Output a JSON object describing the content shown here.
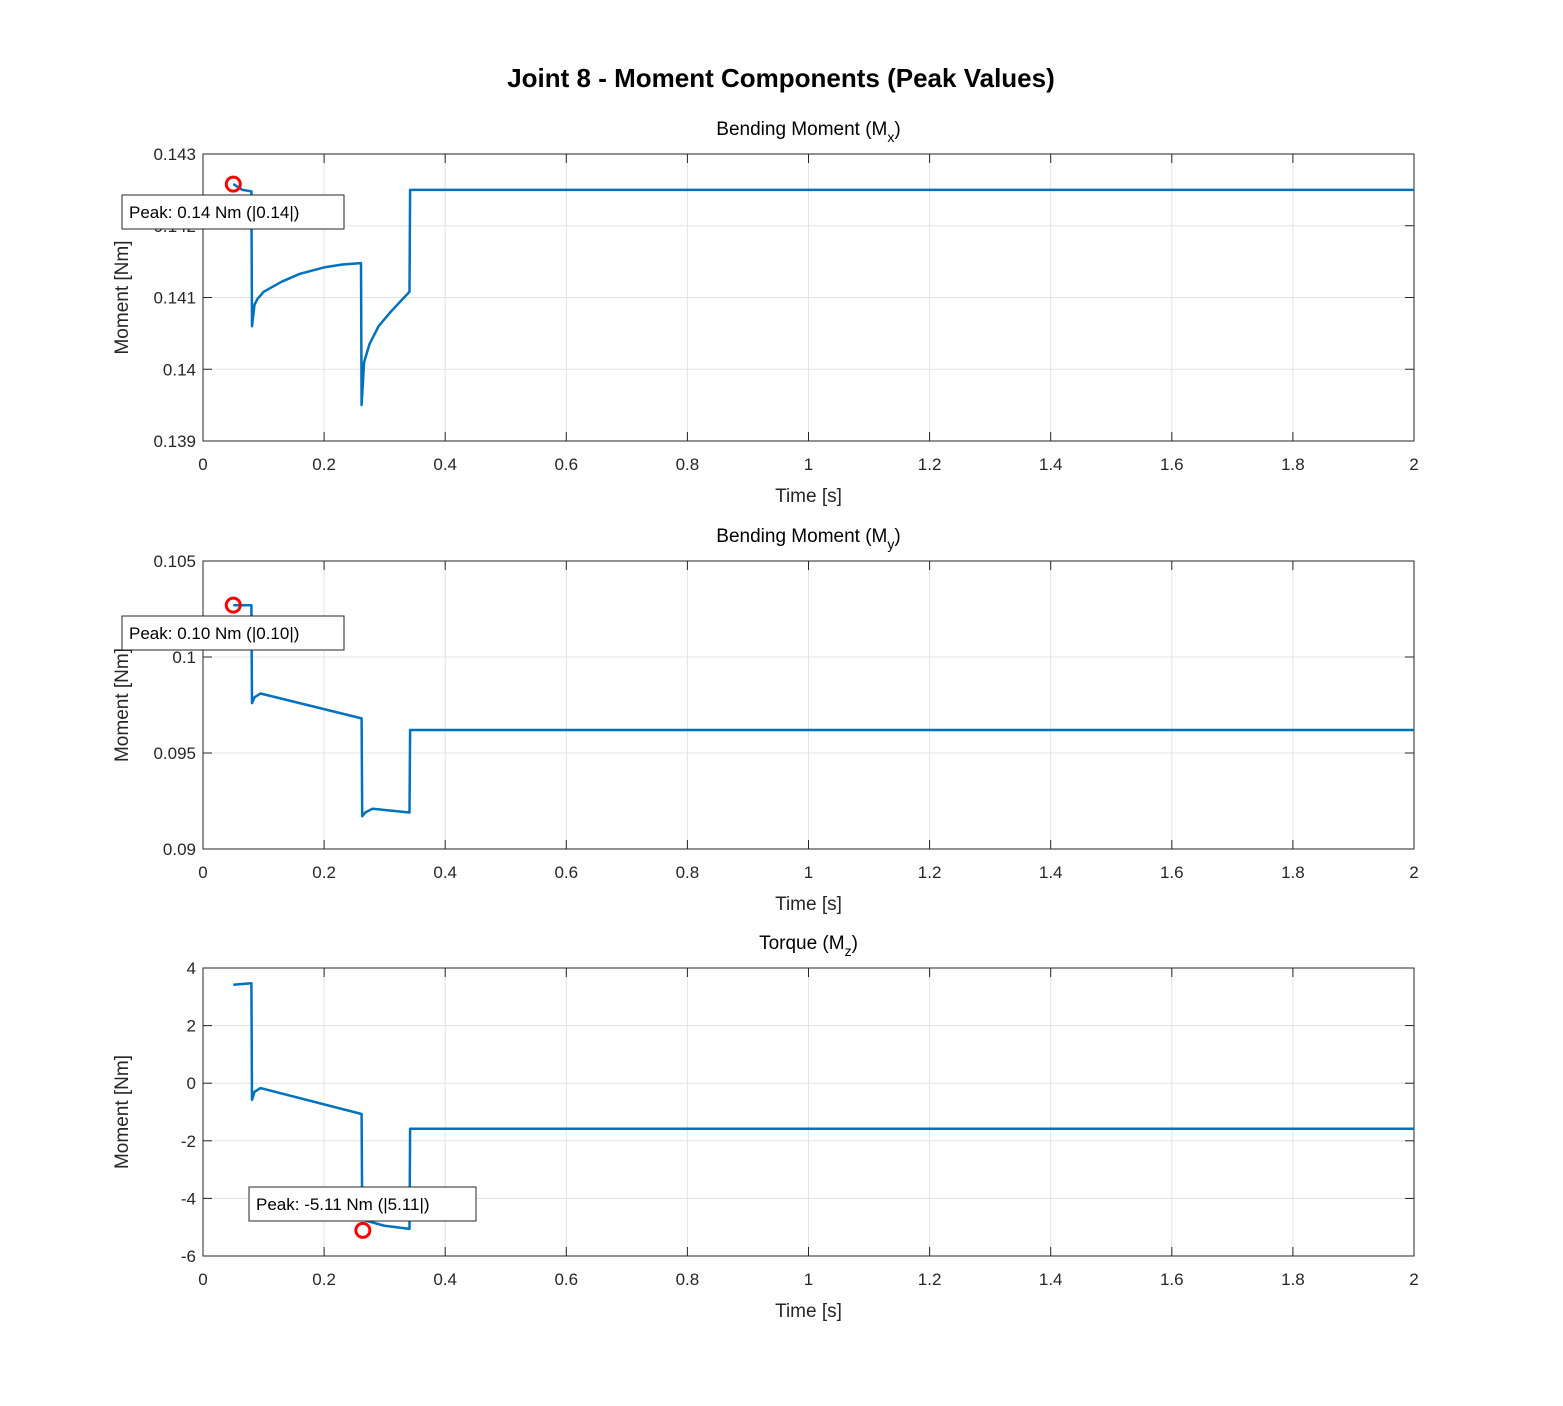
{
  "chart_data": {
    "type": "line",
    "title": "Joint 8 - Moment Components (Peak Values)",
    "subplots": [
      {
        "title": "Bending Moment (M",
        "title_sub": "x",
        "title_end": ")",
        "xlabel": "Time [s]",
        "ylabel": "Moment [Nm]",
        "xlim": [
          0,
          2
        ],
        "ylim": [
          0.139,
          0.143
        ],
        "xticks": [
          "0",
          "0.2",
          "0.4",
          "0.6",
          "0.8",
          "1",
          "1.2",
          "1.4",
          "1.6",
          "1.8",
          "2"
        ],
        "yticks": [
          "0.139",
          "0.14",
          "0.141",
          "0.142",
          "0.143"
        ],
        "grid": true,
        "series": {
          "name": "Mx",
          "color": "#0072BD",
          "x": [
            0.05,
            0.065,
            0.08,
            0.081,
            0.085,
            0.09,
            0.1,
            0.13,
            0.16,
            0.2,
            0.23,
            0.261,
            0.262,
            0.266,
            0.275,
            0.29,
            0.31,
            0.33,
            0.341,
            0.342,
            2
          ],
          "y": [
            0.14258,
            0.1425,
            0.14248,
            0.1406,
            0.1409,
            0.14098,
            0.14108,
            0.14122,
            0.14133,
            0.14142,
            0.14146,
            0.14148,
            0.1395,
            0.1401,
            0.14035,
            0.1406,
            0.1408,
            0.14098,
            0.14108,
            0.1425,
            0.1425
          ]
        },
        "peak": {
          "x": 0.05,
          "y": 0.14258,
          "label": "Peak: 0.14 Nm (|0.14|)"
        }
      },
      {
        "title": "Bending Moment (M",
        "title_sub": "y",
        "title_end": ")",
        "xlabel": "Time [s]",
        "ylabel": "Moment [Nm]",
        "xlim": [
          0,
          2
        ],
        "ylim": [
          0.09,
          0.105
        ],
        "xticks": [
          "0",
          "0.2",
          "0.4",
          "0.6",
          "0.8",
          "1",
          "1.2",
          "1.4",
          "1.6",
          "1.8",
          "2"
        ],
        "yticks": [
          "0.09",
          "0.095",
          "0.1",
          "0.105"
        ],
        "grid": true,
        "series": {
          "name": "My",
          "color": "#0072BD",
          "x": [
            0.05,
            0.08,
            0.081,
            0.085,
            0.095,
            0.262,
            0.263,
            0.268,
            0.28,
            0.341,
            0.342,
            2
          ],
          "y": [
            0.1027,
            0.1027,
            0.0976,
            0.0979,
            0.0981,
            0.0968,
            0.0917,
            0.0919,
            0.0921,
            0.0919,
            0.0962,
            0.0962
          ]
        },
        "peak": {
          "x": 0.05,
          "y": 0.1027,
          "label": "Peak: 0.10 Nm (|0.10|)"
        }
      },
      {
        "title": "Torque (M",
        "title_sub": "z",
        "title_end": ")",
        "xlabel": "Time [s]",
        "ylabel": "Moment [Nm]",
        "xlim": [
          0,
          2
        ],
        "ylim": [
          -6,
          4
        ],
        "xticks": [
          "0",
          "0.2",
          "0.4",
          "0.6",
          "0.8",
          "1",
          "1.2",
          "1.4",
          "1.6",
          "1.8",
          "2"
        ],
        "yticks": [
          "-6",
          "-4",
          "-2",
          "0",
          "2",
          "4"
        ],
        "grid": true,
        "series": {
          "name": "Mz",
          "color": "#0072BD",
          "x": [
            0.05,
            0.08,
            0.081,
            0.085,
            0.095,
            0.262,
            0.263,
            0.265,
            0.3,
            0.341,
            0.342,
            2
          ],
          "y": [
            3.42,
            3.47,
            -0.58,
            -0.3,
            -0.17,
            -1.07,
            -4.6,
            -4.75,
            -4.95,
            -5.06,
            -1.58,
            -1.58
          ]
        },
        "peak": {
          "x": 0.264,
          "y": -5.11,
          "label": "Peak: -5.11 Nm (|5.11|)"
        }
      }
    ]
  }
}
